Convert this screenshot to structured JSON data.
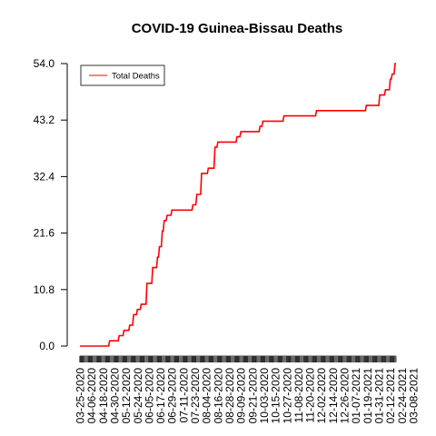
{
  "chart_data": {
    "type": "line",
    "title": "COVID-19 Guinea-Bissau Deaths",
    "xlabel": "",
    "ylabel": "",
    "ylim": [
      0,
      54
    ],
    "y_ticks": [
      "0.0",
      "10.8",
      "21.6",
      "32.4",
      "43.2",
      "54.0"
    ],
    "x_ticks": [
      "03-25-2020",
      "04-06-2020",
      "04-18-2020",
      "04-30-2020",
      "05-12-2020",
      "05-24-2020",
      "06-05-2020",
      "06-17-2020",
      "06-29-2020",
      "07-11-2020",
      "07-23-2020",
      "08-04-2020",
      "08-16-2020",
      "08-28-2020",
      "09-09-2020",
      "09-21-2020",
      "10-03-2020",
      "10-15-2020",
      "10-27-2020",
      "11-08-2020",
      "11-20-2020",
      "12-02-2020",
      "12-14-2020",
      "12-26-2020",
      "01-07-2021",
      "01-19-2021",
      "01-31-2021",
      "02-12-2021",
      "02-24-2021",
      "03-08-2021"
    ],
    "legend": {
      "position": "top-left",
      "entries": [
        "Total Deaths"
      ]
    },
    "grid": false,
    "series": [
      {
        "name": "Total Deaths",
        "color": "#ff0000",
        "points": [
          [
            "03-25-2020",
            0
          ],
          [
            "04-24-2020",
            0
          ],
          [
            "04-25-2020",
            1
          ],
          [
            "05-04-2020",
            1
          ],
          [
            "05-05-2020",
            2
          ],
          [
            "05-09-2020",
            2
          ],
          [
            "05-10-2020",
            3
          ],
          [
            "05-15-2020",
            3
          ],
          [
            "05-16-2020",
            4
          ],
          [
            "05-19-2020",
            4
          ],
          [
            "05-20-2020",
            6
          ],
          [
            "05-23-2020",
            6
          ],
          [
            "05-24-2020",
            7
          ],
          [
            "05-27-2020",
            7
          ],
          [
            "05-28-2020",
            8
          ],
          [
            "06-02-2020",
            8
          ],
          [
            "06-03-2020",
            12
          ],
          [
            "06-08-2020",
            12
          ],
          [
            "06-09-2020",
            15
          ],
          [
            "06-13-2020",
            15
          ],
          [
            "06-14-2020",
            17
          ],
          [
            "06-15-2020",
            17
          ],
          [
            "06-16-2020",
            19
          ],
          [
            "06-18-2020",
            19
          ],
          [
            "06-19-2020",
            22
          ],
          [
            "06-20-2020",
            22
          ],
          [
            "06-21-2020",
            24
          ],
          [
            "06-23-2020",
            24
          ],
          [
            "06-24-2020",
            25
          ],
          [
            "06-28-2020",
            25
          ],
          [
            "06-29-2020",
            26
          ],
          [
            "07-20-2020",
            26
          ],
          [
            "07-21-2020",
            27
          ],
          [
            "07-24-2020",
            27
          ],
          [
            "07-25-2020",
            29
          ],
          [
            "07-29-2020",
            29
          ],
          [
            "07-30-2020",
            33
          ],
          [
            "08-05-2020",
            33
          ],
          [
            "08-06-2020",
            34
          ],
          [
            "08-12-2020",
            34
          ],
          [
            "08-13-2020",
            38
          ],
          [
            "08-15-2020",
            38
          ],
          [
            "08-16-2020",
            39
          ],
          [
            "09-04-2020",
            39
          ],
          [
            "09-05-2020",
            40
          ],
          [
            "09-08-2020",
            40
          ],
          [
            "09-09-2020",
            41
          ],
          [
            "09-28-2020",
            41
          ],
          [
            "09-29-2020",
            42
          ],
          [
            "10-01-2020",
            42
          ],
          [
            "10-02-2020",
            43
          ],
          [
            "10-23-2020",
            43
          ],
          [
            "10-24-2020",
            44
          ],
          [
            "11-26-2020",
            44
          ],
          [
            "11-27-2020",
            45
          ],
          [
            "01-17-2021",
            45
          ],
          [
            "01-18-2021",
            46
          ],
          [
            "01-31-2021",
            46
          ],
          [
            "02-01-2021",
            48
          ],
          [
            "02-06-2021",
            48
          ],
          [
            "02-07-2021",
            49
          ],
          [
            "02-11-2021",
            49
          ],
          [
            "02-12-2021",
            51
          ],
          [
            "02-13-2021",
            51
          ],
          [
            "02-14-2021",
            52
          ],
          [
            "02-16-2021",
            52
          ],
          [
            "02-17-2021",
            54
          ],
          [
            "02-18-2021",
            54
          ]
        ]
      }
    ]
  }
}
